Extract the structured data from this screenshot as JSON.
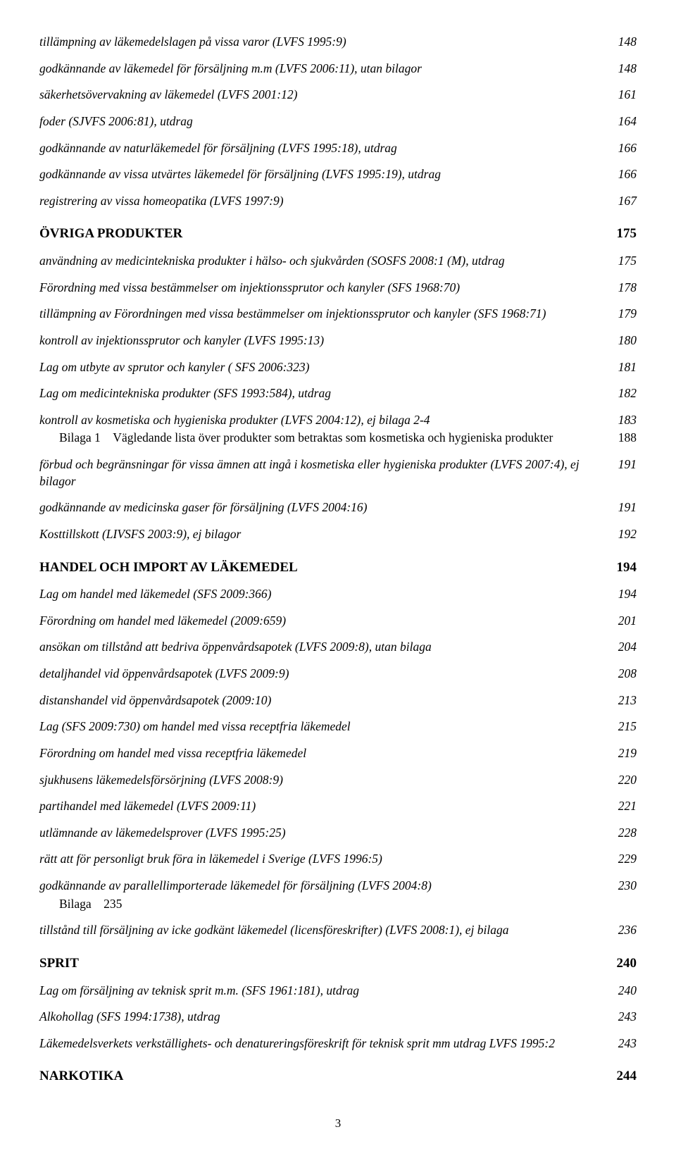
{
  "entries": [
    {
      "label": "tillämpning av läkemedelslagen på vissa varor (LVFS 1995:9)",
      "page": "148",
      "cls": "entry italic body first"
    },
    {
      "label": "godkännande av läkemedel för försäljning m.m (LVFS 2006:11), utan bilagor",
      "page": "148",
      "cls": "entry italic body"
    },
    {
      "label": "säkerhetsövervakning av läkemedel (LVFS 2001:12)",
      "page": "161",
      "cls": "entry italic body"
    },
    {
      "label": "foder (SJVFS 2006:81), utdrag",
      "page": "164",
      "cls": "entry italic body"
    },
    {
      "label": "godkännande av naturläkemedel för försäljning (LVFS 1995:18), utdrag",
      "page": "166",
      "cls": "entry italic body"
    },
    {
      "label": "godkännande av vissa utvärtes läkemedel för försäljning (LVFS 1995:19), utdrag",
      "page": "166",
      "cls": "entry italic body"
    },
    {
      "label": "registrering av vissa homeopatika (LVFS 1997:9)",
      "page": "167",
      "cls": "entry italic body"
    },
    {
      "label": "ÖVRIGA PRODUKTER",
      "page": "175",
      "cls": "entry bold h2"
    },
    {
      "label": "användning av medicintekniska produkter i hälso- och sjukvården (SOSFS 2008:1 (M), utdrag",
      "page": "175",
      "cls": "entry italic body"
    },
    {
      "label": "Förordning med vissa bestämmelser om injektionssprutor och kanyler (SFS 1968:70)",
      "page": "178",
      "cls": "entry italic body"
    },
    {
      "label": "tillämpning av Förordningen med vissa bestämmelser om injektionssprutor och kanyler (SFS 1968:71)",
      "page": "179",
      "cls": "entry italic body"
    },
    {
      "label": "kontroll av injektionssprutor och kanyler (LVFS 1995:13)",
      "page": "180",
      "cls": "entry italic body"
    },
    {
      "label": "Lag om utbyte av sprutor och kanyler ( SFS 2006:323)",
      "page": "181",
      "cls": "entry italic body"
    },
    {
      "label": "Lag om medicintekniska produkter (SFS 1993:584), utdrag",
      "page": "182",
      "cls": "entry italic body"
    },
    {
      "label": "kontroll av kosmetiska och hygieniska produkter (LVFS 2004:12), ej bilaga 2-4",
      "page": "183",
      "cls": "entry italic body"
    },
    {
      "label": "Bilaga 1 Vägledande lista över produkter som betraktas som kosmetiska och hygieniska produkter",
      "page": "188",
      "cls": "entry body tight subentry"
    },
    {
      "label": "förbud och begränsningar för vissa ämnen att ingå i kosmetiska eller hygieniska produkter (LVFS 2007:4), ej bilagor",
      "page": "191",
      "cls": "entry italic body"
    },
    {
      "label": "godkännande av medicinska gaser för försäljning (LVFS 2004:16)",
      "page": "191",
      "cls": "entry italic body"
    },
    {
      "label": "Kosttillskott  (LIVSFS 2003:9), ej bilagor",
      "page": "192",
      "cls": "entry italic body"
    },
    {
      "label": "HANDEL OCH IMPORT AV LÄKEMEDEL",
      "page": "194",
      "cls": "entry bold h2"
    },
    {
      "label": "Lag om handel med läkemedel (SFS 2009:366)",
      "page": "194",
      "cls": "entry italic body"
    },
    {
      "label": "Förordning om handel med läkemedel (2009:659)",
      "page": "201",
      "cls": "entry italic body"
    },
    {
      "label": "ansökan om tillstånd att bedriva öppenvårdsapotek (LVFS 2009:8), utan bilaga",
      "page": "204",
      "cls": "entry italic body"
    },
    {
      "label": "detaljhandel vid öppenvårdsapotek (LVFS 2009:9)",
      "page": "208",
      "cls": "entry italic body"
    },
    {
      "label": "distanshandel vid öppenvårdsapotek (2009:10)",
      "page": "213",
      "cls": "entry italic body"
    },
    {
      "label": "Lag (SFS 2009:730) om handel med vissa receptfria läkemedel",
      "page": "215",
      "cls": "entry italic body"
    },
    {
      "label": "Förordning om handel med vissa receptfria läkemedel",
      "page": "219",
      "cls": "entry italic body"
    },
    {
      "label": "sjukhusens läkemedelsförsörjning (LVFS 2008:9)",
      "page": "220",
      "cls": "entry italic body"
    },
    {
      "label": "partihandel med läkemedel (LVFS 2009:11)",
      "page": "221",
      "cls": "entry italic body"
    },
    {
      "label": "utlämnande av läkemedelsprover (LVFS 1995:25)",
      "page": "228",
      "cls": "entry italic body"
    },
    {
      "label": "rätt att för personligt bruk föra in läkemedel i Sverige (LVFS 1996:5)",
      "page": "229",
      "cls": "entry italic body"
    },
    {
      "label": "godkännande av parallellimporterade läkemedel för försäljning (LVFS 2004:8)",
      "page": "230",
      "cls": "entry italic body"
    },
    {
      "label": "Bilaga 235",
      "page": "",
      "cls": "entry body tight subentry"
    },
    {
      "label": "tillstånd till försäljning av icke godkänt läkemedel (licensföreskrifter) (LVFS 2008:1), ej bilaga",
      "page": "236",
      "cls": "entry italic body"
    },
    {
      "label": "SPRIT",
      "page": "240",
      "cls": "entry bold h2"
    },
    {
      "label": "Lag om försäljning av teknisk sprit m.m. (SFS 1961:181), utdrag",
      "page": "240",
      "cls": "entry italic body"
    },
    {
      "label": "Alkohollag (SFS 1994:1738), utdrag",
      "page": "243",
      "cls": "entry italic body"
    },
    {
      "label": "Läkemedelsverkets verkställighets- och denatureringsföreskrift för teknisk sprit mm  utdrag LVFS 1995:2",
      "page": "243",
      "cls": "entry italic body"
    },
    {
      "label": "NARKOTIKA",
      "page": "244",
      "cls": "entry bold h2"
    }
  ],
  "pagenum": "3"
}
